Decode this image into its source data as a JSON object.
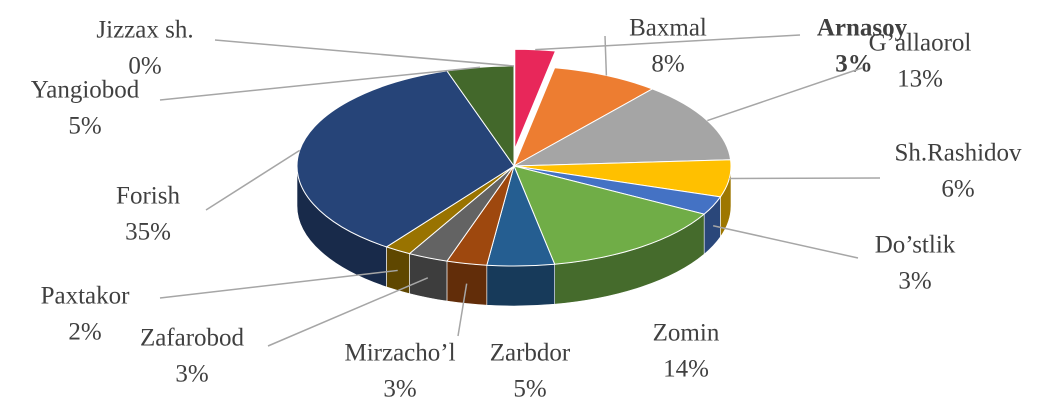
{
  "chart_data": {
    "type": "pie3d",
    "categories": [
      "Arnasoy",
      "Baxmal",
      "G’allaorol",
      "Sh.Rashidov",
      "Do’stlik",
      "Zomin",
      "Zarbdor",
      "Mirzacho’l",
      "Zafarobod",
      "Paxtakor",
      "Forish",
      "Yangiobod",
      "Jizzax sh."
    ],
    "values": [
      3,
      8,
      13,
      6,
      3,
      14,
      5,
      3,
      3,
      2,
      35,
      5,
      0
    ],
    "value_labels": [
      "3%",
      "8%",
      "13%",
      "6%",
      "3%",
      "14%",
      "5%",
      "3%",
      "3%",
      "2%",
      "35%",
      "5%",
      "0%"
    ],
    "colors": [
      "#e8275a",
      "#ed7d31",
      "#a5a5a5",
      "#ffc000",
      "#4472c4",
      "#70ad47",
      "#255e91",
      "#9e480e",
      "#636363",
      "#997300",
      "#264478",
      "#43682b",
      "#7cafdd"
    ],
    "exploded": "Arnasoy",
    "highlight": "Arnasoy"
  }
}
